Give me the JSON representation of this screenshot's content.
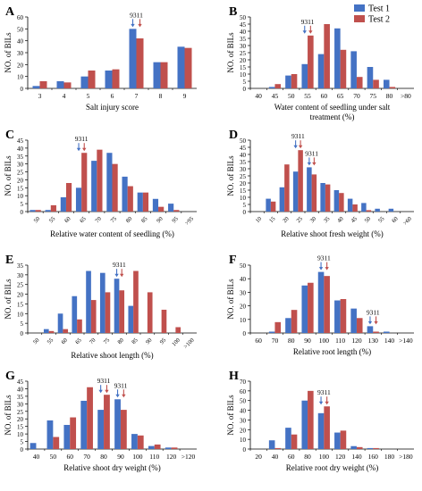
{
  "legend": {
    "position": "top-right",
    "items": [
      {
        "label": "Test 1",
        "color": "#4472C4"
      },
      {
        "label": "Test 2",
        "color": "#C0504D"
      }
    ]
  },
  "marker": {
    "label": "9311",
    "icon": "arrow-down-icon"
  },
  "chart_data": [
    {
      "id": "A",
      "type": "bar",
      "xlabel": "Salt injury score",
      "ylabel": "NO. of BILs",
      "ylim": [
        0,
        60
      ],
      "yticks": [
        0,
        10,
        20,
        30,
        40,
        50,
        60
      ],
      "grid": false,
      "categories": [
        "3",
        "4",
        "5",
        "6",
        "7",
        "8",
        "9"
      ],
      "series": [
        {
          "name": "Test 1",
          "values": [
            2,
            6,
            10,
            15,
            50,
            22,
            35
          ]
        },
        {
          "name": "Test 2",
          "values": [
            6,
            5,
            15,
            16,
            42,
            22,
            34
          ]
        }
      ],
      "marker_category": "7"
    },
    {
      "id": "B",
      "type": "bar",
      "xlabel": "Water content of seedling under salt treatment (%)",
      "ylabel": "NO. of BILs",
      "ylim": [
        0,
        50
      ],
      "yticks": [
        0,
        5,
        10,
        15,
        20,
        25,
        30,
        35,
        40,
        45,
        50
      ],
      "grid": false,
      "categories": [
        "40",
        "45",
        "50",
        "55",
        "60",
        "65",
        "70",
        "75",
        "80",
        ">80"
      ],
      "series": [
        {
          "name": "Test 1",
          "values": [
            0,
            1,
            9,
            17,
            24,
            42,
            26,
            15,
            6,
            0
          ]
        },
        {
          "name": "Test 2",
          "values": [
            0,
            3,
            10,
            37,
            45,
            27,
            8,
            6,
            1,
            0
          ]
        }
      ],
      "marker_category": "55"
    },
    {
      "id": "C",
      "type": "bar",
      "xlabel": "Relative water content of seedling (%)",
      "ylabel": "NO. of BILs",
      "ylim": [
        0,
        45
      ],
      "yticks": [
        0,
        5,
        10,
        15,
        20,
        25,
        30,
        35,
        40,
        45
      ],
      "grid": false,
      "categories": [
        "50",
        "55",
        "60",
        "65",
        "70",
        "75",
        "80",
        "85",
        "90",
        "95",
        ">95"
      ],
      "series": [
        {
          "name": "Test 1",
          "values": [
            1,
            1,
            9,
            15,
            32,
            37,
            22,
            12,
            8,
            5,
            0
          ]
        },
        {
          "name": "Test 2",
          "values": [
            1,
            4,
            18,
            37,
            39,
            30,
            16,
            12,
            3,
            1,
            0
          ]
        }
      ],
      "marker_category": "65"
    },
    {
      "id": "D",
      "type": "bar",
      "xlabel": "Relative shoot fresh weight (%)",
      "ylabel": "NO. of BILs",
      "ylim": [
        0,
        50
      ],
      "yticks": [
        0,
        5,
        10,
        15,
        20,
        25,
        30,
        35,
        40,
        45,
        50
      ],
      "grid": false,
      "categories": [
        "10",
        "15",
        "20",
        "25",
        "30",
        "35",
        "40",
        "45",
        "50",
        "55",
        "60",
        ">60"
      ],
      "series": [
        {
          "name": "Test 1",
          "values": [
            0,
            9,
            17,
            28,
            31,
            20,
            15,
            9,
            6,
            2,
            2,
            0
          ]
        },
        {
          "name": "Test 2",
          "values": [
            0,
            7,
            33,
            43,
            26,
            19,
            13,
            5,
            1,
            0,
            0,
            0
          ]
        }
      ],
      "markers": [
        {
          "category": "25",
          "label": "9311"
        },
        {
          "category": "30",
          "label": "9311"
        }
      ]
    },
    {
      "id": "E",
      "type": "bar",
      "xlabel": "Relative shoot length (%)",
      "ylabel": "NO. of BILs",
      "ylim": [
        0,
        35
      ],
      "yticks": [
        0,
        5,
        10,
        15,
        20,
        25,
        30,
        35
      ],
      "grid": false,
      "categories": [
        "50",
        "55",
        "60",
        "65",
        "70",
        "75",
        "80",
        "85",
        "90",
        "95",
        "100",
        ">100"
      ],
      "series": [
        {
          "name": "Test 1",
          "values": [
            0,
            2,
            10,
            19,
            32,
            31,
            28,
            14,
            0,
            0,
            0,
            0
          ]
        },
        {
          "name": "Test 2",
          "values": [
            0,
            1,
            2,
            7,
            17,
            21,
            22,
            32,
            21,
            12,
            3,
            0
          ]
        }
      ],
      "marker_category": "80"
    },
    {
      "id": "F",
      "type": "bar",
      "xlabel": "Relative root length (%)",
      "ylabel": "NO. of BILs",
      "ylim": [
        0,
        50
      ],
      "yticks": [
        0,
        10,
        20,
        30,
        40,
        50
      ],
      "grid": false,
      "categories": [
        "60",
        "70",
        "80",
        "90",
        "100",
        "110",
        "120",
        "130",
        "140",
        ">140"
      ],
      "series": [
        {
          "name": "Test 1",
          "values": [
            0,
            1,
            11,
            35,
            45,
            24,
            18,
            5,
            1,
            0
          ]
        },
        {
          "name": "Test 2",
          "values": [
            0,
            8,
            17,
            37,
            42,
            25,
            11,
            1,
            0,
            0
          ]
        }
      ],
      "markers": [
        {
          "category": "100",
          "label": "9311"
        },
        {
          "category": "130",
          "label": "9311"
        }
      ]
    },
    {
      "id": "G",
      "type": "bar",
      "xlabel": "Relative shoot dry weight (%)",
      "ylabel": "NO. of BILs",
      "ylim": [
        0,
        45
      ],
      "yticks": [
        0,
        5,
        10,
        15,
        20,
        25,
        30,
        35,
        40,
        45
      ],
      "grid": false,
      "categories": [
        "40",
        "50",
        "60",
        "70",
        "80",
        "90",
        "100",
        "110",
        "120",
        ">120"
      ],
      "series": [
        {
          "name": "Test 1",
          "values": [
            4,
            19,
            16,
            32,
            26,
            33,
            10,
            2,
            1,
            0
          ]
        },
        {
          "name": "Test 2",
          "values": [
            0,
            8,
            21,
            41,
            36,
            26,
            9,
            3,
            1,
            0
          ]
        }
      ],
      "markers": [
        {
          "category": "80",
          "label": "9311"
        },
        {
          "category": "90",
          "label": "9311"
        }
      ]
    },
    {
      "id": "H",
      "type": "bar",
      "xlabel": "Relative root dry weight (%)",
      "ylabel": "NO. of BILs",
      "ylim": [
        0,
        70
      ],
      "yticks": [
        0,
        10,
        20,
        30,
        40,
        50,
        60,
        70
      ],
      "grid": false,
      "categories": [
        "20",
        "40",
        "60",
        "80",
        "100",
        "120",
        "140",
        "160",
        "180",
        ">180"
      ],
      "series": [
        {
          "name": "Test 1",
          "values": [
            0,
            9,
            22,
            50,
            37,
            17,
            3,
            1,
            0,
            0
          ]
        },
        {
          "name": "Test 2",
          "values": [
            0,
            1,
            15,
            60,
            44,
            19,
            2,
            1,
            0,
            0
          ]
        }
      ],
      "marker_category": "100"
    }
  ]
}
